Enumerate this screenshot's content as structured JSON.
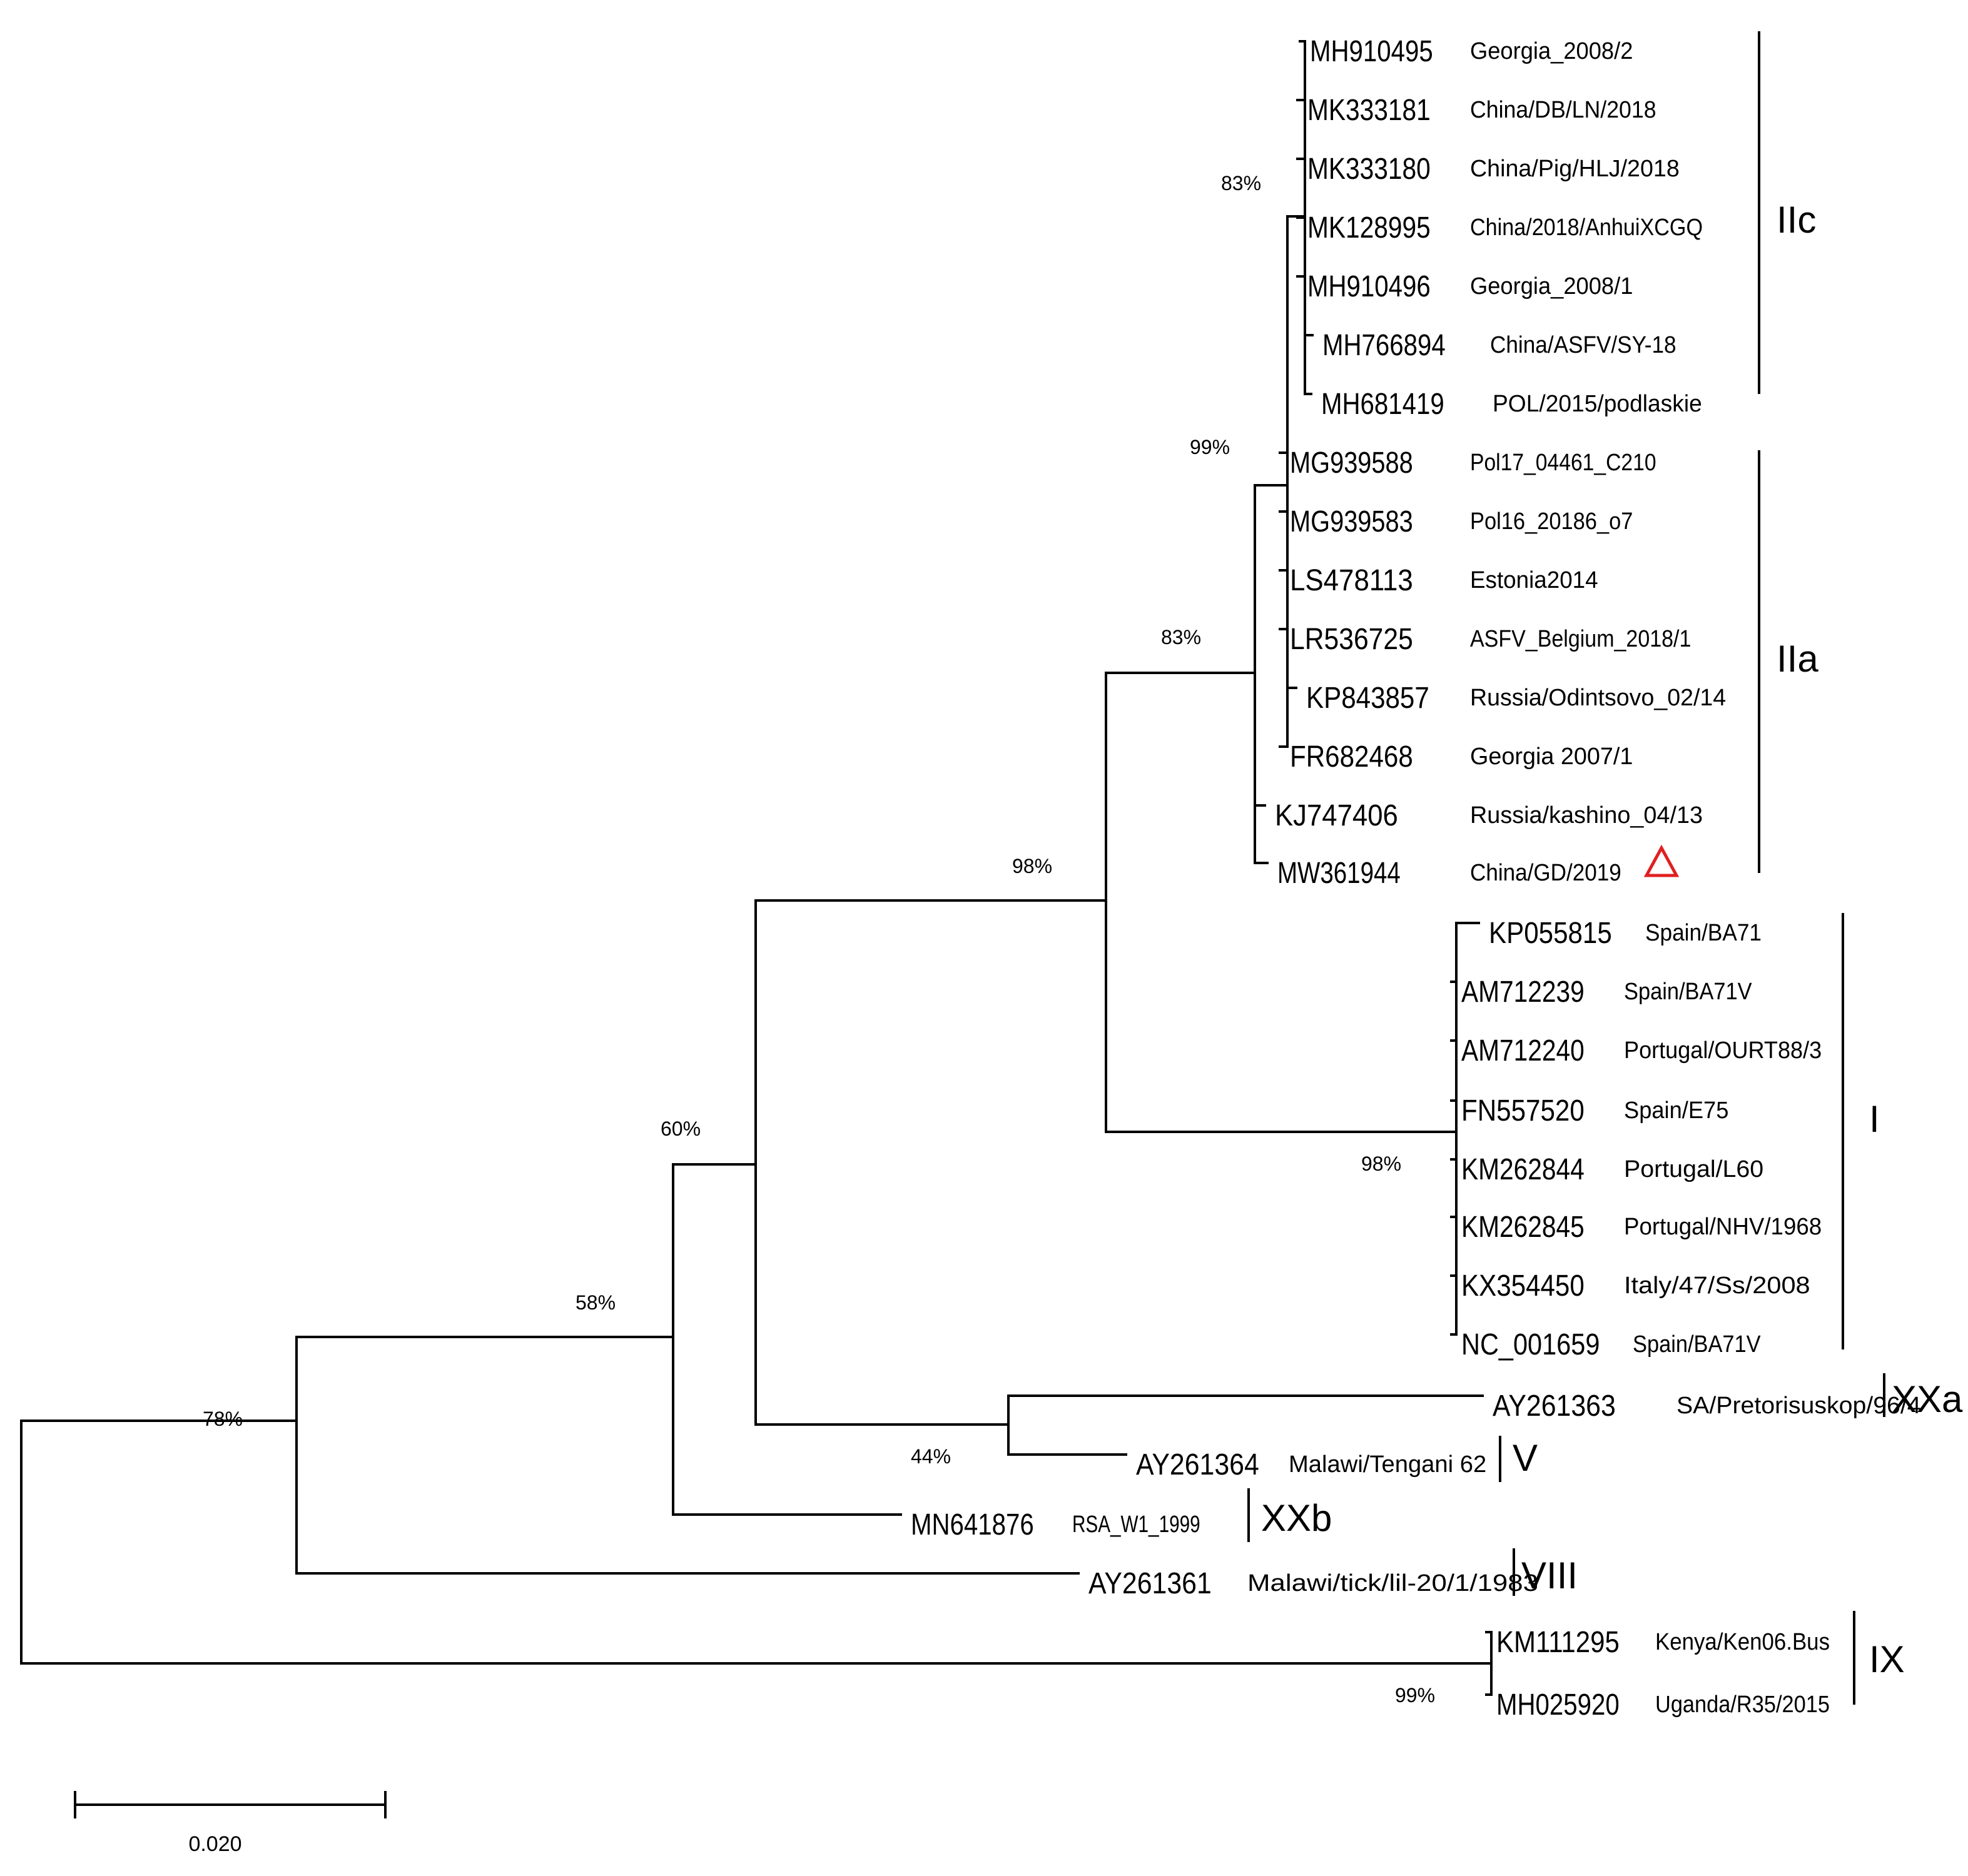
{
  "figure": {
    "type": "phylogenetic_tree",
    "scale_bar_label": "0.020",
    "marker_color": "#e02020"
  },
  "taxa": [
    {
      "id": "MH910495",
      "accession": "MH910495",
      "strain": "Georgia_2008/2"
    },
    {
      "id": "MK333181",
      "accession": "MK333181",
      "strain": "China/DB/LN/2018"
    },
    {
      "id": "MK333180",
      "accession": "MK333180",
      "strain": "China/Pig/HLJ/2018"
    },
    {
      "id": "MK128995",
      "accession": "MK128995",
      "strain": "China/2018/AnhuiXCGQ"
    },
    {
      "id": "MH910496",
      "accession": "MH910496",
      "strain": "Georgia_2008/1"
    },
    {
      "id": "MH766894",
      "accession": "MH766894",
      "strain": "China/ASFV/SY-18"
    },
    {
      "id": "MH681419",
      "accession": "MH681419",
      "strain": "POL/2015/podlaskie"
    },
    {
      "id": "MG939588",
      "accession": "MG939588",
      "strain": "Pol17_04461_C210"
    },
    {
      "id": "MG939583",
      "accession": "MG939583",
      "strain": "Pol16_20186_o7"
    },
    {
      "id": "LS478113",
      "accession": "LS478113",
      "strain": "Estonia2014"
    },
    {
      "id": "LR536725",
      "accession": "LR536725",
      "strain": "ASFV_Belgium_2018/1"
    },
    {
      "id": "KP843857",
      "accession": "KP843857",
      "strain": "Russia/Odintsovo_02/14"
    },
    {
      "id": "FR682468",
      "accession": "FR682468",
      "strain": "Georgia 2007/1"
    },
    {
      "id": "KJ747406",
      "accession": "KJ747406",
      "strain": "Russia/kashino_04/13"
    },
    {
      "id": "MW361944",
      "accession": "MW361944",
      "strain": "China/GD/2019",
      "marked": true
    },
    {
      "id": "KP055815",
      "accession": "KP055815",
      "strain": "Spain/BA71"
    },
    {
      "id": "AM712239",
      "accession": "AM712239",
      "strain": "Spain/BA71V"
    },
    {
      "id": "AM712240",
      "accession": "AM712240",
      "strain": "Portugal/OURT88/3"
    },
    {
      "id": "FN557520",
      "accession": "FN557520",
      "strain": "Spain/E75"
    },
    {
      "id": "KM262844",
      "accession": "KM262844",
      "strain": "Portugal/L60"
    },
    {
      "id": "KM262845",
      "accession": "KM262845",
      "strain": "Portugal/NHV/1968"
    },
    {
      "id": "KX354450",
      "accession": "KX354450",
      "strain": "Italy/47/Ss/2008"
    },
    {
      "id": "NC_001659",
      "accession": "NC_001659",
      "strain": "Spain/BA71V"
    },
    {
      "id": "AY261363",
      "accession": "AY261363",
      "strain": "SA/Pretorisuskop/96/4"
    },
    {
      "id": "AY261364",
      "accession": "AY261364",
      "strain": "Malawi/Tengani 62"
    },
    {
      "id": "MN641876",
      "accession": "MN641876",
      "strain": "RSA_W1_1999"
    },
    {
      "id": "AY261361",
      "accession": "AY261361",
      "strain": "Malawi/tick/lil-20/1/1983"
    },
    {
      "id": "KM111295",
      "accession": "KM111295",
      "strain": "Kenya/Ken06.Bus"
    },
    {
      "id": "MH025920",
      "accession": "MH025920",
      "strain": "Uganda/R35/2015"
    }
  ],
  "bootstrap_values": [
    {
      "id": "n-iic",
      "label": "83%"
    },
    {
      "id": "n-ii-inner",
      "label": "99%"
    },
    {
      "id": "n-ii",
      "label": "83%"
    },
    {
      "id": "n-i-ii",
      "label": "98%"
    },
    {
      "id": "n-i",
      "label": "98%"
    },
    {
      "id": "n-60",
      "label": "60%"
    },
    {
      "id": "n-44",
      "label": "44%"
    },
    {
      "id": "n-58",
      "label": "58%"
    },
    {
      "id": "n-root",
      "label": "78%"
    },
    {
      "id": "n-ix",
      "label": "99%"
    }
  ],
  "genotypes": [
    {
      "id": "IIc",
      "label": "IIc"
    },
    {
      "id": "IIa",
      "label": "IIa"
    },
    {
      "id": "I",
      "label": "I"
    },
    {
      "id": "XXa",
      "label": "XXa"
    },
    {
      "id": "V",
      "label": "V"
    },
    {
      "id": "XXb",
      "label": "XXb"
    },
    {
      "id": "VIII",
      "label": "VIII"
    },
    {
      "id": "IX",
      "label": "IX"
    }
  ]
}
